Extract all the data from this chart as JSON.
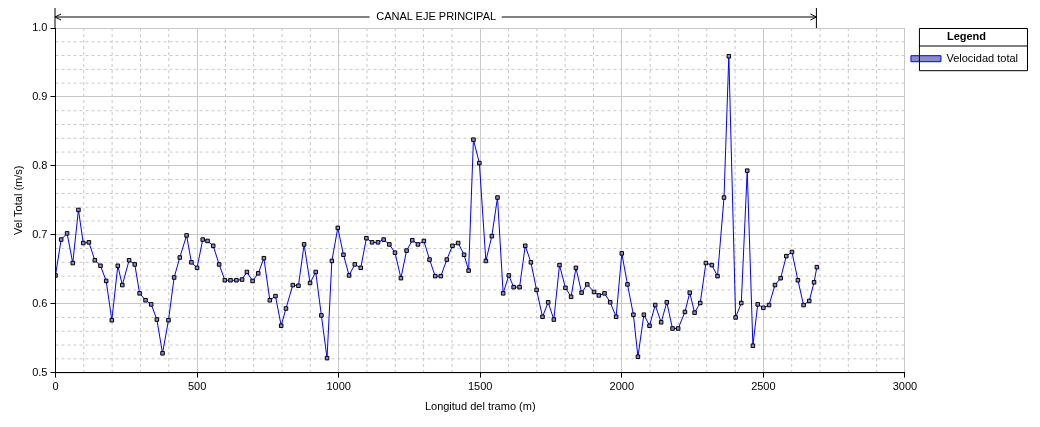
{
  "chart_data": {
    "type": "line",
    "xlabel": "Longitud del tramo (m)",
    "ylabel": "Vel Total (m/s)",
    "legend_title": "Legend",
    "annotations": [
      "CANAL EJE PRINCIPAL"
    ],
    "xlim": [
      0,
      3000
    ],
    "xticks": [
      0,
      500,
      1000,
      1500,
      2000,
      2500,
      3000
    ],
    "ylim": [
      0.5,
      1.0
    ],
    "yticks": [
      0.5,
      0.6,
      0.7,
      0.8,
      0.9,
      {
        "value": 1.0,
        "label": "1.0"
      }
    ],
    "grid": true,
    "legend": "right",
    "marker": "square",
    "line_style": "solid",
    "series": [
      {
        "name": "Velocidad total",
        "color": "#0000ff",
        "x": [
          0,
          20,
          41,
          61,
          81,
          98,
          118,
          139,
          159,
          179,
          199,
          220,
          236,
          260,
          280,
          297,
          318,
          338,
          358,
          378,
          399,
          419,
          439,
          463,
          480,
          500,
          520,
          537,
          557,
          578,
          598,
          618,
          639,
          659,
          676,
          696,
          716,
          736,
          757,
          777,
          797,
          814,
          838,
          858,
          878,
          899,
          919,
          939,
          959,
          976,
          997,
          1017,
          1037,
          1057,
          1078,
          1098,
          1118,
          1139,
          1159,
          1179,
          1199,
          1220,
          1240,
          1260,
          1280,
          1301,
          1321,
          1341,
          1361,
          1382,
          1402,
          1422,
          1443,
          1459,
          1476,
          1497,
          1520,
          1541,
          1561,
          1581,
          1601,
          1618,
          1639,
          1659,
          1679,
          1699,
          1720,
          1740,
          1760,
          1780,
          1801,
          1821,
          1838,
          1858,
          1878,
          1902,
          1919,
          1939,
          1959,
          1980,
          2000,
          2020,
          2041,
          2057,
          2078,
          2098,
          2118,
          2139,
          2159,
          2179,
          2199,
          2223,
          2240,
          2257,
          2277,
          2297,
          2318,
          2338,
          2361,
          2378,
          2402,
          2422,
          2443,
          2463,
          2480,
          2500,
          2520,
          2541,
          2561,
          2581,
          2601,
          2622,
          2642,
          2662,
          2679,
          2689
        ],
        "values": [
          0.641,
          0.693,
          0.702,
          0.659,
          0.736,
          0.688,
          0.689,
          0.663,
          0.655,
          0.633,
          0.576,
          0.655,
          0.627,
          0.663,
          0.657,
          0.615,
          0.605,
          0.599,
          0.577,
          0.528,
          0.576,
          0.638,
          0.667,
          0.699,
          0.66,
          0.652,
          0.693,
          0.691,
          0.684,
          0.657,
          0.634,
          0.634,
          0.634,
          0.635,
          0.646,
          0.633,
          0.644,
          0.666,
          0.605,
          0.611,
          0.568,
          0.593,
          0.627,
          0.626,
          0.686,
          0.63,
          0.646,
          0.583,
          0.521,
          0.662,
          0.71,
          0.671,
          0.641,
          0.657,
          0.652,
          0.695,
          0.689,
          0.689,
          0.693,
          0.686,
          0.674,
          0.637,
          0.677,
          0.692,
          0.686,
          0.691,
          0.664,
          0.64,
          0.64,
          0.664,
          0.684,
          0.688,
          0.671,
          0.648,
          0.838,
          0.804,
          0.662,
          0.698,
          0.754,
          0.615,
          0.641,
          0.624,
          0.624,
          0.684,
          0.66,
          0.62,
          0.581,
          0.602,
          0.577,
          0.656,
          0.623,
          0.61,
          0.652,
          0.616,
          0.628,
          0.617,
          0.612,
          0.615,
          0.602,
          0.581,
          0.673,
          0.628,
          0.584,
          0.523,
          0.584,
          0.568,
          0.598,
          0.573,
          0.602,
          0.564,
          0.564,
          0.588,
          0.616,
          0.587,
          0.601,
          0.659,
          0.656,
          0.64,
          0.754,
          0.959,
          0.58,
          0.601,
          0.793,
          0.539,
          0.599,
          0.594,
          0.598,
          0.627,
          0.637,
          0.669,
          0.675,
          0.634,
          0.598,
          0.604,
          0.631,
          0.653
        ]
      }
    ]
  }
}
